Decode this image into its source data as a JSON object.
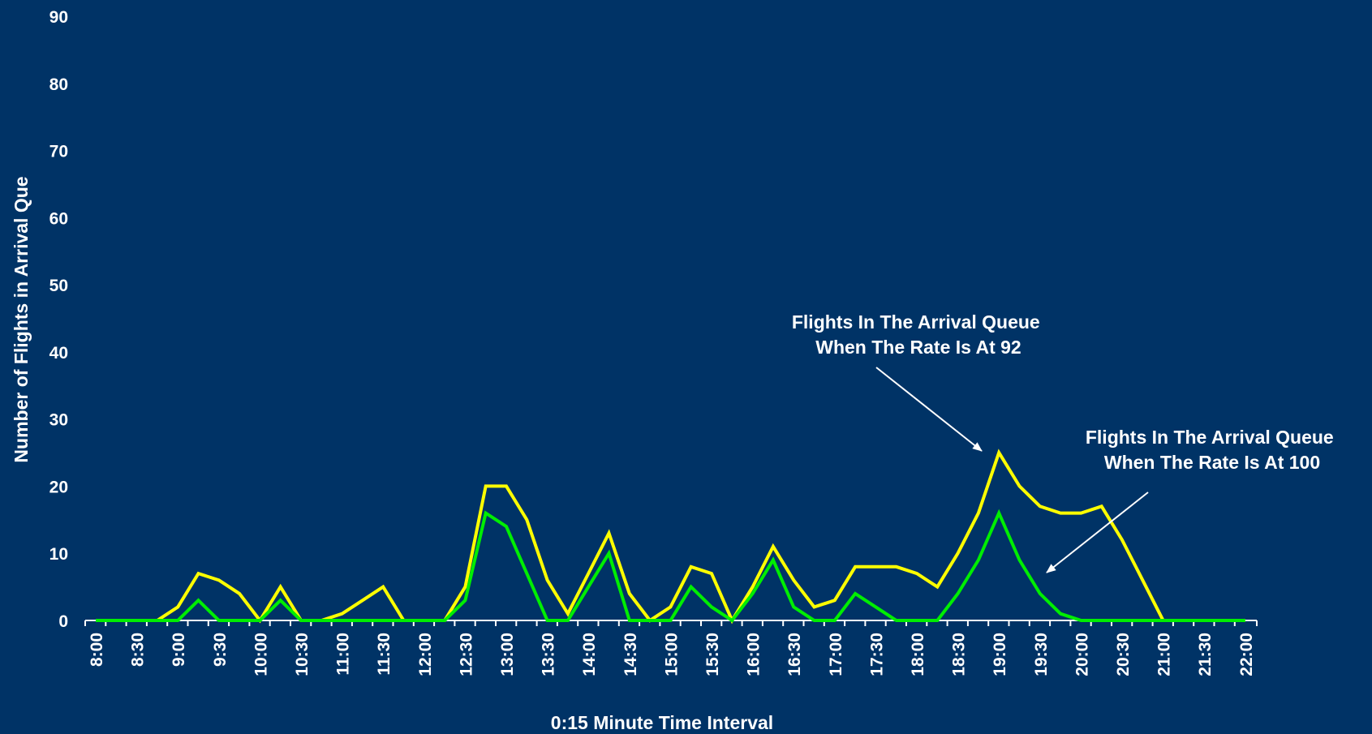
{
  "colors": {
    "background": "#003366",
    "axis": "#ffffff",
    "text": "#ffffff"
  },
  "chart_data": {
    "type": "line",
    "title": "",
    "xlabel": "0:15 Minute Time Interval",
    "ylabel": "Number of Flights in Arrival Que",
    "ylim": [
      0,
      90
    ],
    "yticks": [
      0,
      10,
      20,
      30,
      40,
      50,
      60,
      70,
      80,
      90
    ],
    "grid": false,
    "legend": "none",
    "x": [
      "8:00",
      "8:15",
      "8:30",
      "8:45",
      "9:00",
      "9:15",
      "9:30",
      "9:45",
      "10:00",
      "10:15",
      "10:30",
      "10:45",
      "11:00",
      "11:15",
      "11:30",
      "11:45",
      "12:00",
      "12:15",
      "12:30",
      "12:45",
      "13:00",
      "13:15",
      "13:30",
      "13:45",
      "14:00",
      "14:15",
      "14:30",
      "14:45",
      "15:00",
      "15:15",
      "15:30",
      "15:45",
      "16:00",
      "16:15",
      "16:30",
      "16:45",
      "17:00",
      "17:15",
      "17:30",
      "17:45",
      "18:00",
      "18:15",
      "18:30",
      "18:45",
      "19:00",
      "19:15",
      "19:30",
      "19:45",
      "20:00",
      "20:15",
      "20:30",
      "20:45",
      "21:00",
      "21:15",
      "21:30",
      "21:45",
      "22:00"
    ],
    "xtick_labels": [
      "8:00",
      "8:30",
      "9:00",
      "9:30",
      "10:00",
      "10:30",
      "11:00",
      "11:30",
      "12:00",
      "12:30",
      "13:00",
      "13:30",
      "14:00",
      "14:30",
      "15:00",
      "15:30",
      "16:00",
      "16:30",
      "17:00",
      "17:30",
      "18:00",
      "18:30",
      "19:00",
      "19:30",
      "20:00",
      "20:30",
      "21:00",
      "21:30",
      "22:00"
    ],
    "series": [
      {
        "color": "#ffff00",
        "values": [
          0,
          0,
          0,
          0,
          2,
          7,
          6,
          4,
          0,
          5,
          0,
          0,
          1,
          3,
          5,
          0,
          0,
          0,
          5,
          20,
          20,
          15,
          6,
          1,
          7,
          13,
          4,
          0,
          2,
          8,
          7,
          0,
          5,
          11,
          6,
          2,
          3,
          8,
          8,
          8,
          7,
          5,
          10,
          16,
          25,
          20,
          17,
          16,
          16,
          17,
          12,
          6,
          0,
          0,
          0,
          0,
          0
        ]
      },
      {
        "color": "#00ee00",
        "values": [
          0,
          0,
          0,
          0,
          0,
          3,
          0,
          0,
          0,
          3,
          0,
          0,
          0,
          0,
          0,
          0,
          0,
          0,
          3,
          16,
          14,
          7,
          0,
          0,
          5,
          10,
          0,
          0,
          0,
          5,
          2,
          0,
          4,
          9,
          2,
          0,
          0,
          4,
          2,
          0,
          0,
          0,
          4,
          9,
          16,
          9,
          4,
          1,
          0,
          0,
          0,
          0,
          0,
          0,
          0,
          0,
          0
        ]
      }
    ],
    "annotations": [
      {
        "lines": [
          "Flights In The Arrival Queue",
          "When The Rate Is At 92"
        ]
      },
      {
        "lines": [
          "Flights In The Arrival Queue",
          "When The Rate Is At 100"
        ]
      }
    ]
  }
}
